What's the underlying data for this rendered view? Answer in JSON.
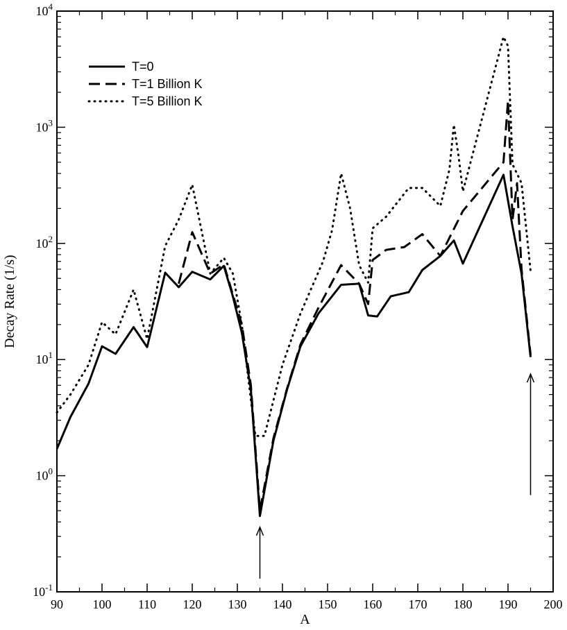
{
  "chart_data": {
    "type": "line",
    "xlabel": "A",
    "ylabel": "Decay Rate (1/s)",
    "xlim": [
      90,
      200
    ],
    "ylim": [
      0.1,
      10000
    ],
    "y_scale": "log",
    "x_ticks": [
      90,
      100,
      110,
      120,
      130,
      140,
      150,
      160,
      170,
      180,
      190,
      200
    ],
    "x_tick_labels": [
      "90",
      "100",
      "110",
      "120",
      "130",
      "140",
      "150",
      "160",
      "170",
      "180",
      "190",
      "200"
    ],
    "y_ticks": [
      {
        "value": 0.1,
        "base": "10",
        "exp": "-1"
      },
      {
        "value": 1,
        "base": "10",
        "exp": "0"
      },
      {
        "value": 10,
        "base": "10",
        "exp": "1"
      },
      {
        "value": 100,
        "base": "10",
        "exp": "2"
      },
      {
        "value": 1000,
        "base": "10",
        "exp": "3"
      },
      {
        "value": 10000,
        "base": "10",
        "exp": "4"
      }
    ],
    "grid": false,
    "legend_position": "top-left",
    "series": [
      {
        "name": "T=0",
        "style": "solid",
        "points": [
          [
            90,
            1.7
          ],
          [
            93,
            3.2
          ],
          [
            97,
            6.2
          ],
          [
            100,
            13
          ],
          [
            103,
            11.2
          ],
          [
            107,
            19
          ],
          [
            110,
            12.8
          ],
          [
            114,
            56
          ],
          [
            117,
            42
          ],
          [
            120,
            57
          ],
          [
            124,
            49
          ],
          [
            127,
            64
          ],
          [
            129,
            35
          ],
          [
            131,
            17
          ],
          [
            133,
            5.5
          ],
          [
            135,
            0.45
          ],
          [
            138,
            2.0
          ],
          [
            141,
            5.5
          ],
          [
            144,
            13
          ],
          [
            148,
            25
          ],
          [
            153,
            44
          ],
          [
            157,
            45
          ],
          [
            159,
            24
          ],
          [
            161,
            23.5
          ],
          [
            164,
            35
          ],
          [
            168,
            38
          ],
          [
            171,
            59
          ],
          [
            175,
            78
          ],
          [
            178,
            106
          ],
          [
            180,
            67
          ],
          [
            189,
            390
          ],
          [
            191,
            140
          ],
          [
            193,
            55
          ],
          [
            195,
            10.5
          ]
        ]
      },
      {
        "name": "T=1 Billion K",
        "style": "dashed",
        "points": [
          [
            117,
            45
          ],
          [
            120,
            125
          ],
          [
            124,
            55
          ],
          [
            127,
            66
          ],
          [
            131,
            20
          ],
          [
            133,
            6
          ],
          [
            135,
            0.5
          ],
          [
            138,
            2.1
          ],
          [
            141,
            5.6
          ],
          [
            144,
            13.5
          ],
          [
            148,
            28
          ],
          [
            153,
            65
          ],
          [
            157,
            45
          ],
          [
            159,
            30
          ],
          [
            160,
            72
          ],
          [
            163,
            88
          ],
          [
            167,
            93
          ],
          [
            171,
            120
          ],
          [
            175,
            78
          ],
          [
            180,
            190
          ],
          [
            189,
            500
          ],
          [
            190,
            1700
          ],
          [
            191,
            160
          ],
          [
            192,
            330
          ],
          [
            193,
            60
          ],
          [
            195,
            11
          ]
        ]
      },
      {
        "name": "T=5 Billion K",
        "style": "dotted",
        "points": [
          [
            90,
            3.5
          ],
          [
            93,
            5
          ],
          [
            97,
            9
          ],
          [
            100,
            21
          ],
          [
            103,
            16.5
          ],
          [
            107,
            40
          ],
          [
            110,
            15
          ],
          [
            114,
            95
          ],
          [
            117,
            160
          ],
          [
            120,
            320
          ],
          [
            124,
            55
          ],
          [
            127,
            75
          ],
          [
            129,
            55
          ],
          [
            131,
            20
          ],
          [
            133,
            4.5
          ],
          [
            134,
            2.2
          ],
          [
            136,
            2.2
          ],
          [
            140,
            9
          ],
          [
            144,
            25
          ],
          [
            149,
            70
          ],
          [
            151,
            130
          ],
          [
            153,
            400
          ],
          [
            155,
            200
          ],
          [
            157,
            65
          ],
          [
            159,
            46
          ],
          [
            160,
            135
          ],
          [
            163,
            170
          ],
          [
            168,
            300
          ],
          [
            171,
            300
          ],
          [
            175,
            210
          ],
          [
            177,
            430
          ],
          [
            178,
            1050
          ],
          [
            179,
            580
          ],
          [
            180,
            280
          ],
          [
            189,
            6000
          ],
          [
            190,
            5000
          ],
          [
            191,
            480
          ],
          [
            193,
            330
          ],
          [
            195,
            58
          ]
        ]
      }
    ],
    "annotations": [
      {
        "type": "arrow",
        "x": 135,
        "y_from": 0.13,
        "y_to": 0.36
      },
      {
        "type": "arrow",
        "x": 195,
        "y_from": 0.68,
        "y_to": 7.5
      }
    ]
  }
}
